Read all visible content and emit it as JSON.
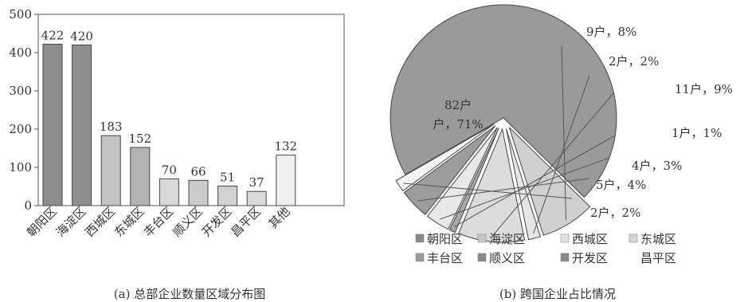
{
  "chart_data": [
    {
      "type": "bar",
      "categories": [
        "朝阳区",
        "海淀区",
        "西城区",
        "东城区",
        "丰台区",
        "顺义区",
        "开发区",
        "昌平区",
        "其他"
      ],
      "values": [
        422,
        420,
        183,
        152,
        70,
        66,
        51,
        37,
        132
      ],
      "ylim": [
        0,
        500
      ],
      "yticks": [
        0,
        100,
        200,
        300,
        400,
        500
      ],
      "caption": "(a)  总部企业数量区域分布图",
      "fills": [
        "#8e8e8e",
        "#8e8e8e",
        "#c4c4c4",
        "#b3b3b3",
        "#d9d9d9",
        "#cbcbcb",
        "#d2d2d2",
        "#dadada",
        "#efefef"
      ]
    },
    {
      "type": "pie",
      "slices": [
        {
          "name": "朝阳区",
          "value": 82,
          "label": "82户，71%",
          "fill": "#9a9a9a"
        },
        {
          "name": "海淀区",
          "value": 9,
          "label": "9户，8%",
          "fill": "#d0d0d0"
        },
        {
          "name": "西城区",
          "value": 2,
          "label": "2户，2%",
          "fill": "#e6e6e6"
        },
        {
          "name": "东城区",
          "value": 11,
          "label": "11户，9%",
          "fill": "#dcdcdc"
        },
        {
          "name": "丰台区",
          "value": 1,
          "label": "1户，1%",
          "fill": "#a8a8a8"
        },
        {
          "name": "顺义区",
          "value": 4,
          "label": "4户，3%",
          "fill": "#e9e9e9"
        },
        {
          "name": "开发区",
          "value": 5,
          "label": "5户，4%",
          "fill": "#9c9c9c"
        },
        {
          "name": "昌平区",
          "value": 2,
          "label": "2户，2%",
          "fill": "#f4f4f4"
        }
      ],
      "legend": [
        "朝阳区",
        "海淀区",
        "西城区",
        "东城区",
        "丰台区",
        "顺义区",
        "开发区",
        "昌平区"
      ],
      "legend_fills": [
        "#8a8a8a",
        "#c8c8c8",
        "#e3e3e3",
        "#d6d6d6",
        "#9a9a9a",
        "#8a8a8a",
        "#8a8a8a",
        "#ffffff"
      ],
      "caption": "(b) 跨国企业占比情况"
    }
  ]
}
